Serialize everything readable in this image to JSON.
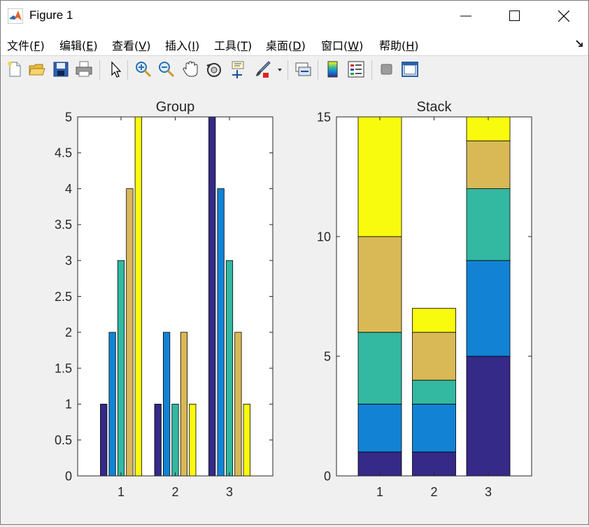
{
  "window": {
    "title": "Figure 1",
    "icon": "matlab-logo-icon",
    "controls": [
      "minimize-icon",
      "maximize-icon",
      "close-icon"
    ]
  },
  "menu": {
    "items": [
      {
        "label": "文件(F)",
        "underline": "F"
      },
      {
        "label": "编辑(E)",
        "underline": "E"
      },
      {
        "label": "查看(V)",
        "underline": "V"
      },
      {
        "label": "插入(I)",
        "underline": "I"
      },
      {
        "label": "工具(T)",
        "underline": "T"
      },
      {
        "label": "桌面(D)",
        "underline": "D"
      },
      {
        "label": "窗口(W)",
        "underline": "W"
      },
      {
        "label": "帮助(H)",
        "underline": "H"
      }
    ],
    "dock_icon": "dock-arrow-icon"
  },
  "toolbar": {
    "buttons": [
      "new-figure-icon",
      "open-file-icon",
      "save-icon",
      "print-icon",
      "select-pointer-icon",
      "zoom-in-icon",
      "zoom-out-icon",
      "pan-hand-icon",
      "rotate-3d-icon",
      "data-cursor-icon",
      "brush-icon",
      "brush-dropdown-icon",
      "link-plot-icon",
      "colorbar-icon",
      "legend-icon",
      "hide-plot-tools-icon",
      "show-plot-tools-icon"
    ]
  },
  "colors": {
    "series": [
      "#352a87",
      "#1283d4",
      "#33b8a1",
      "#d9b956",
      "#f9fb0e"
    ],
    "axes_bg": "#ffffff",
    "figure_bg": "#f0f0f0"
  },
  "chart_data": [
    {
      "type": "bar",
      "mode": "grouped",
      "title": "Group",
      "categories": [
        "1",
        "2",
        "3"
      ],
      "series": [
        {
          "values": [
            1,
            1,
            5
          ]
        },
        {
          "values": [
            2,
            2,
            4
          ]
        },
        {
          "values": [
            3,
            1,
            3
          ]
        },
        {
          "values": [
            4,
            2,
            2
          ]
        },
        {
          "values": [
            5,
            1,
            1
          ]
        }
      ],
      "xlim": [
        0.2,
        3.8
      ],
      "ylim": [
        0,
        5
      ],
      "yticks": [
        "0",
        "0.5",
        "1",
        "1.5",
        "2",
        "2.5",
        "3",
        "3.5",
        "4",
        "4.5",
        "5"
      ],
      "xticks": [
        "1",
        "2",
        "3"
      ]
    },
    {
      "type": "bar",
      "mode": "stacked",
      "title": "Stack",
      "categories": [
        "1",
        "2",
        "3"
      ],
      "series": [
        {
          "values": [
            1,
            1,
            5
          ]
        },
        {
          "values": [
            2,
            2,
            4
          ]
        },
        {
          "values": [
            3,
            1,
            3
          ]
        },
        {
          "values": [
            4,
            2,
            2
          ]
        },
        {
          "values": [
            5,
            1,
            1
          ]
        }
      ],
      "xlim": [
        0.2,
        3.8
      ],
      "ylim": [
        0,
        15
      ],
      "yticks": [
        "0",
        "5",
        "10",
        "15"
      ],
      "xticks": [
        "1",
        "2",
        "3"
      ]
    }
  ]
}
